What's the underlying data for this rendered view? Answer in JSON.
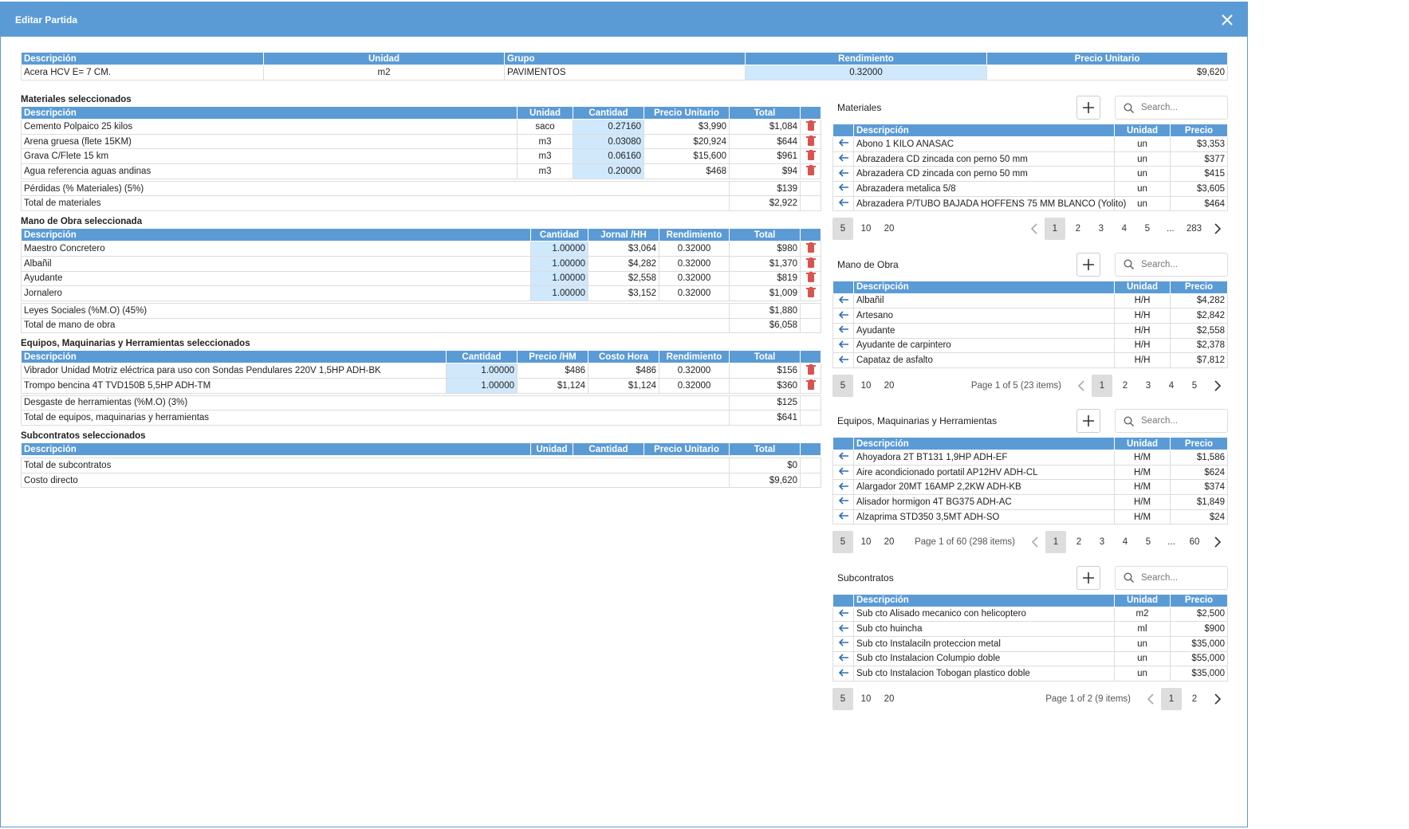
{
  "header": {
    "title": "Editar Partida"
  },
  "summary": {
    "headers": [
      "Descripción",
      "Unidad",
      "Grupo",
      "Rendimiento",
      "Precio Unitario"
    ],
    "row": [
      "Acera HCV E= 7 CM.",
      "m2",
      "PAVIMENTOS",
      "0.32000",
      "$9,620"
    ]
  },
  "sections": [
    {
      "title": "Materiales seleccionados",
      "headers": [
        "Descripción",
        "Unidad",
        "Cantidad",
        "Precio Unitario",
        "Total"
      ],
      "rows": [
        [
          "Cemento Polpaico 25 kilos",
          "saco",
          "0.27160",
          "$3,990",
          "$1,084"
        ],
        [
          "Arena gruesa (flete 15KM)",
          "m3",
          "0.03080",
          "$20,924",
          "$644"
        ],
        [
          "Grava C/Flete 15 km",
          "m3",
          "0.06160",
          "$15,600",
          "$961"
        ],
        [
          "Agua referencia aguas andinas",
          "m3",
          "0.20000",
          "$468",
          "$94"
        ]
      ],
      "totals": [
        [
          "Pérdidas (% Materiales) (5%)",
          "$139"
        ],
        [
          "Total de materiales",
          "$2,922"
        ]
      ]
    },
    {
      "title": "Mano de Obra seleccionada",
      "headers": [
        "Descripción",
        "Cantidad",
        "Jornal /HH",
        "Rendimiento",
        "Total"
      ],
      "rows": [
        [
          "Maestro Concretero",
          "1.00000",
          "$3,064",
          "0.32000",
          "$980"
        ],
        [
          "Albañil",
          "1.00000",
          "$4,282",
          "0.32000",
          "$1,370"
        ],
        [
          "Ayudante",
          "1.00000",
          "$2,558",
          "0.32000",
          "$819"
        ],
        [
          "Jornalero",
          "1.00000",
          "$3,152",
          "0.32000",
          "$1,009"
        ]
      ],
      "totals": [
        [
          "Leyes Sociales (%M.O) (45%)",
          "$1,880"
        ],
        [
          "Total de mano de obra",
          "$6,058"
        ]
      ]
    },
    {
      "title": "Equipos, Maquinarias y Herramientas seleccionados",
      "headers": [
        "Descripción",
        "Cantidad",
        "Precio /HM",
        "Costo Hora",
        "Rendimiento",
        "Total"
      ],
      "rows": [
        [
          "Vibrador Unidad Motriz eléctrica para uso con Sondas Pendulares 220V 1,5HP ADH-BK",
          "1.00000",
          "$486",
          "$486",
          "0.32000",
          "$156"
        ],
        [
          "Trompo bencina 4T TVD150B 5,5HP ADH-TM",
          "1.00000",
          "$1,124",
          "$1,124",
          "0.32000",
          "$360"
        ]
      ],
      "totals": [
        [
          "Desgaste de herramientas (%M.O) (3%)",
          "$125"
        ],
        [
          "Total de equipos, maquinarias y herramientas",
          "$641"
        ]
      ]
    },
    {
      "title": "Subcontratos seleccionados",
      "headers": [
        "Descripción",
        "Unidad",
        "Cantidad",
        "Precio Unitario",
        "Total"
      ],
      "rows": [],
      "totals": [
        [
          "Total de subcontratos",
          "$0"
        ],
        [
          "Costo directo",
          "$9,620"
        ]
      ]
    }
  ],
  "panels": [
    {
      "title": "Materiales",
      "search_placeholder": "Search...",
      "headers": [
        "Descripción",
        "Unidad",
        "Precio"
      ],
      "rows": [
        [
          "Abono 1 KILO ANASAC",
          "un",
          "$3,353"
        ],
        [
          "Abrazadera CD zincada con perno 50 mm",
          "un",
          "$377"
        ],
        [
          "Abrazadera CD zincada con perno 50 mm",
          "un",
          "$415"
        ],
        [
          "Abrazadera metalica 5/8",
          "un",
          "$3,605"
        ],
        [
          "Abrazadera P/TUBO BAJADA HOFFENS 75 MM BLANCO (Yolito)",
          "un",
          "$464"
        ]
      ],
      "page_sizes": [
        5,
        10,
        20
      ],
      "pages": [
        "1",
        "2",
        "3",
        "4",
        "5",
        "...",
        "283"
      ]
    },
    {
      "title": "Mano de Obra",
      "search_placeholder": "Search...",
      "headers": [
        "Descripción",
        "Unidad",
        "Precio"
      ],
      "rows": [
        [
          "Albañil",
          "H/H",
          "$4,282"
        ],
        [
          "Artesano",
          "H/H",
          "$2,842"
        ],
        [
          "Ayudante",
          "H/H",
          "$2,558"
        ],
        [
          "Ayudante de carpintero",
          "H/H",
          "$2,378"
        ],
        [
          "Capataz de asfalto",
          "H/H",
          "$7,812"
        ]
      ],
      "page_sizes": [
        5,
        10,
        20
      ],
      "page_info": "Page 1 of 5 (23 items)",
      "pages": [
        "1",
        "2",
        "3",
        "4",
        "5"
      ]
    },
    {
      "title": "Equipos, Maquinarias y Herramientas",
      "search_placeholder": "Search...",
      "headers": [
        "Descripción",
        "Unidad",
        "Precio"
      ],
      "rows": [
        [
          "Ahoyadora 2T BT131 1,9HP ADH-EF",
          "H/M",
          "$1,586"
        ],
        [
          "Aire acondicionado portatil AP12HV ADH-CL",
          "H/M",
          "$624"
        ],
        [
          "Alargador 20MT 16AMP 2,2KW ADH-KB",
          "H/M",
          "$374"
        ],
        [
          "Alisador hormigon 4T BG375 ADH-AC",
          "H/M",
          "$1,849"
        ],
        [
          "Alzaprima STD350 3,5MT ADH-SO",
          "H/M",
          "$24"
        ]
      ],
      "page_sizes": [
        5,
        10,
        20
      ],
      "page_info": "Page 1 of 60 (298 items)",
      "pages": [
        "1",
        "2",
        "3",
        "4",
        "5",
        "...",
        "60"
      ]
    },
    {
      "title": "Subcontratos",
      "search_placeholder": "Search...",
      "headers": [
        "Descripción",
        "Unidad",
        "Precio"
      ],
      "rows": [
        [
          "Sub cto Alisado mecanico con helicoptero",
          "m2",
          "$2,500"
        ],
        [
          "Sub cto huincha",
          "ml",
          "$900"
        ],
        [
          "Sub cto Instalaciln proteccion metal",
          "un",
          "$35,000"
        ],
        [
          "Sub cto Instalacion Columpio doble",
          "un",
          "$55,000"
        ],
        [
          "Sub cto Instalacion Tobogan plastico doble",
          "un",
          "$35,000"
        ]
      ],
      "page_sizes": [
        5,
        10,
        20
      ],
      "page_info": "Page 1 of 2 (9 items)",
      "pages": [
        "1",
        "2"
      ]
    }
  ]
}
